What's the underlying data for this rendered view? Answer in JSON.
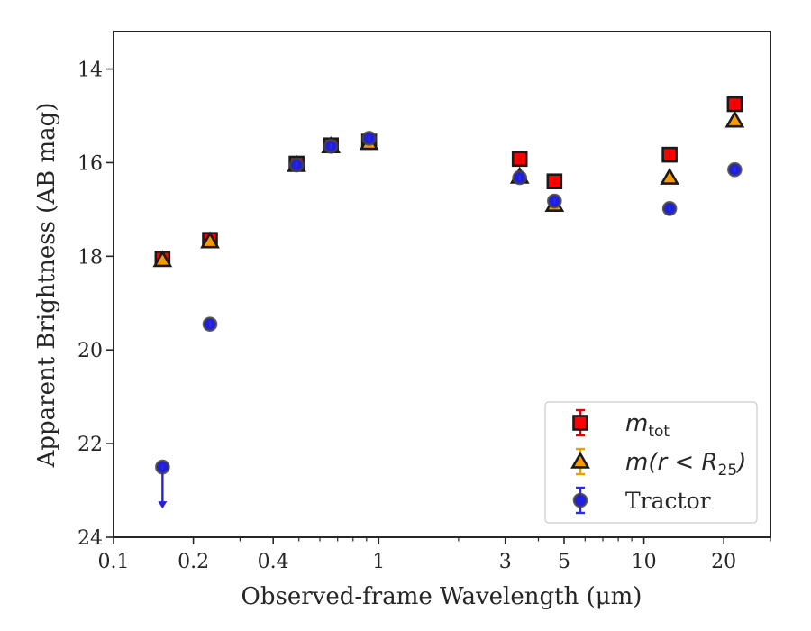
{
  "chart_data": {
    "type": "scatter",
    "xscale": "log",
    "yinverted": true,
    "xlim": [
      0.1,
      30
    ],
    "ylim": [
      13.2,
      24
    ],
    "xlabel": "Observed-frame Wavelength (μm)",
    "ylabel": "Apparent Brightness (AB mag)",
    "xticks": [
      {
        "value": 0.1,
        "label": "0.1"
      },
      {
        "value": 0.2,
        "label": "0.2"
      },
      {
        "value": 0.4,
        "label": "0.4"
      },
      {
        "value": 1,
        "label": "1"
      },
      {
        "value": 3,
        "label": "3"
      },
      {
        "value": 5,
        "label": "5"
      },
      {
        "value": 10,
        "label": "10"
      },
      {
        "value": 20,
        "label": "20"
      }
    ],
    "yticks": [
      {
        "value": 14,
        "label": "14"
      },
      {
        "value": 16,
        "label": "16"
      },
      {
        "value": 18,
        "label": "18"
      },
      {
        "value": 20,
        "label": "20"
      },
      {
        "value": 22,
        "label": "22"
      },
      {
        "value": 24,
        "label": "24"
      }
    ],
    "legend_position": "lower-right",
    "series": [
      {
        "name": "m_tot",
        "legend_main": "m",
        "legend_sub": "tot",
        "marker": "square",
        "color": "#ff0000",
        "edge": "#1a1a1a",
        "errcolor": "#e00000",
        "x": [
          0.153,
          0.231,
          0.49,
          0.66,
          0.92,
          3.4,
          4.6,
          12.5,
          22.0
        ],
        "y": [
          18.05,
          17.65,
          16.02,
          15.63,
          15.55,
          15.92,
          16.4,
          15.83,
          14.75
        ]
      },
      {
        "name": "m(r < R25)",
        "legend_main": "m(r < R",
        "legend_sub": "25",
        "legend_tail": ")",
        "marker": "triangle",
        "color": "#ff9900",
        "edge": "#1a1a1a",
        "errcolor": "#e6a000",
        "x": [
          0.153,
          0.231,
          0.49,
          0.66,
          0.92,
          3.4,
          4.6,
          12.5,
          22.0
        ],
        "y": [
          18.08,
          17.68,
          16.05,
          15.65,
          15.58,
          16.3,
          16.9,
          16.32,
          15.1
        ]
      },
      {
        "name": "Tractor",
        "legend_main": "Tractor",
        "marker": "circle",
        "color": "#1f1fdd",
        "edge": "#444444",
        "errcolor": "#2a2aee",
        "x": [
          0.153,
          0.231,
          0.49,
          0.66,
          0.92,
          3.4,
          4.6,
          12.5,
          22.0
        ],
        "y": [
          22.5,
          19.45,
          16.05,
          15.65,
          15.48,
          16.32,
          16.82,
          16.98,
          16.15
        ],
        "upper_limit_index": 0
      }
    ]
  }
}
